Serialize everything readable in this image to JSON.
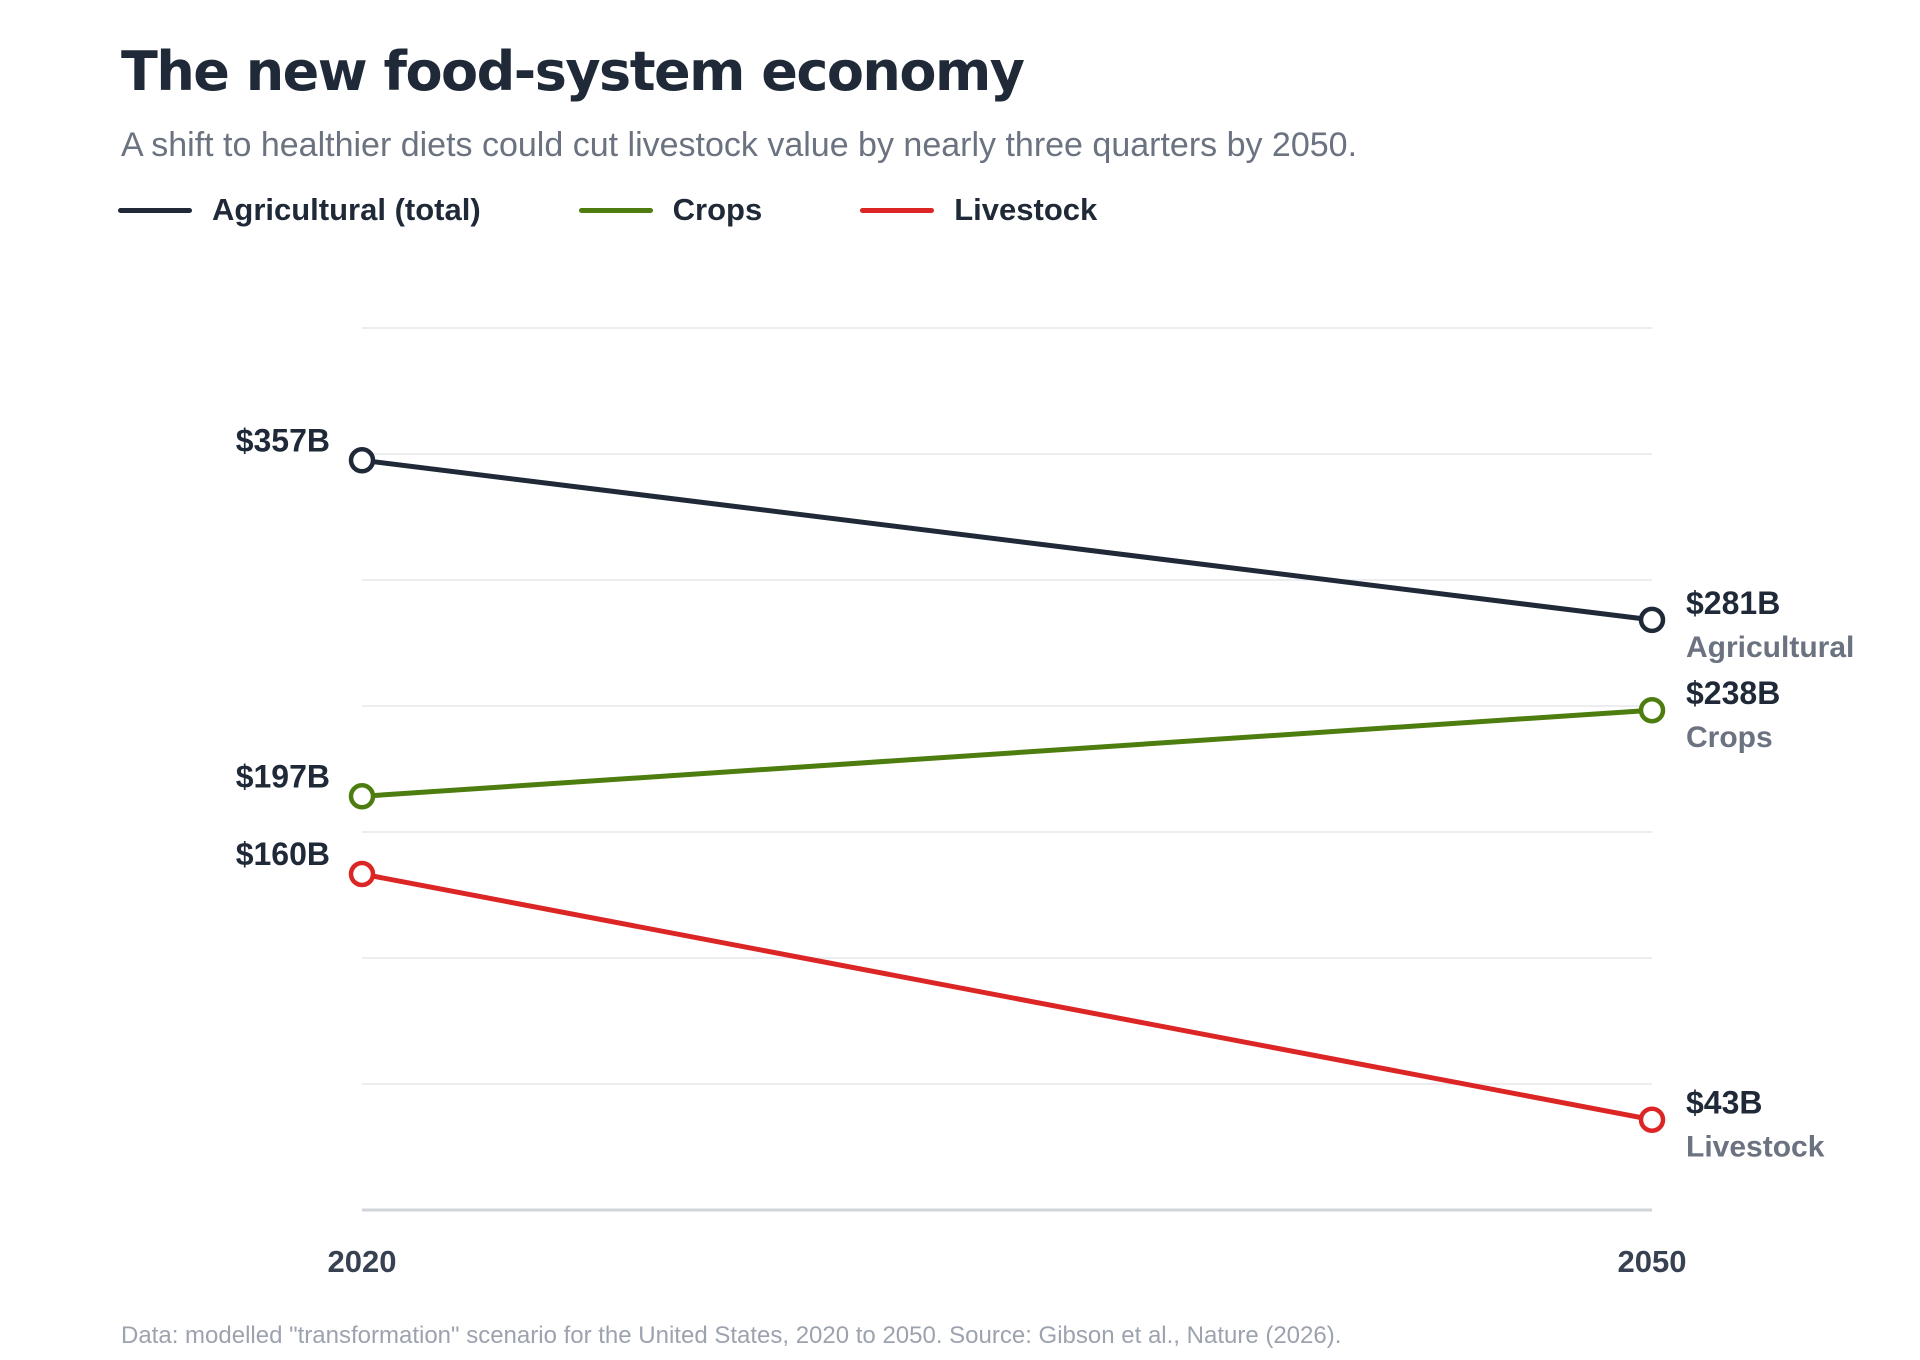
{
  "title": "The new food-system economy",
  "subtitle": "A shift to healthier diets could cut livestock value by nearly three quarters by 2050.",
  "footnote": "Data: modelled \"transformation\" scenario for the United States, 2020 to 2050. Source: Gibson et al., Nature (2026).",
  "legend": [
    {
      "label": "Agricultural (total)",
      "color": "#1f2937"
    },
    {
      "label": "Crops",
      "color": "#4d7c0f"
    },
    {
      "label": "Livestock",
      "color": "#dc2626"
    }
  ],
  "chart_data": {
    "type": "line",
    "x": [
      "2020",
      "2050"
    ],
    "ylim": [
      0,
      370
    ],
    "grid": true,
    "legend_position": "top-left",
    "series": [
      {
        "name": "Agricultural (total)",
        "end_label": "Agricultural",
        "color": "#1f2937",
        "values": [
          357,
          281
        ],
        "value_labels": [
          "$357B",
          "$281B"
        ]
      },
      {
        "name": "Crops",
        "end_label": "Crops",
        "color": "#4d7c0f",
        "values": [
          197,
          238
        ],
        "value_labels": [
          "$197B",
          "$238B"
        ]
      },
      {
        "name": "Livestock",
        "end_label": "Livestock",
        "color": "#dc2626",
        "values": [
          160,
          43
        ],
        "value_labels": [
          "$160B",
          "$43B"
        ]
      }
    ]
  }
}
